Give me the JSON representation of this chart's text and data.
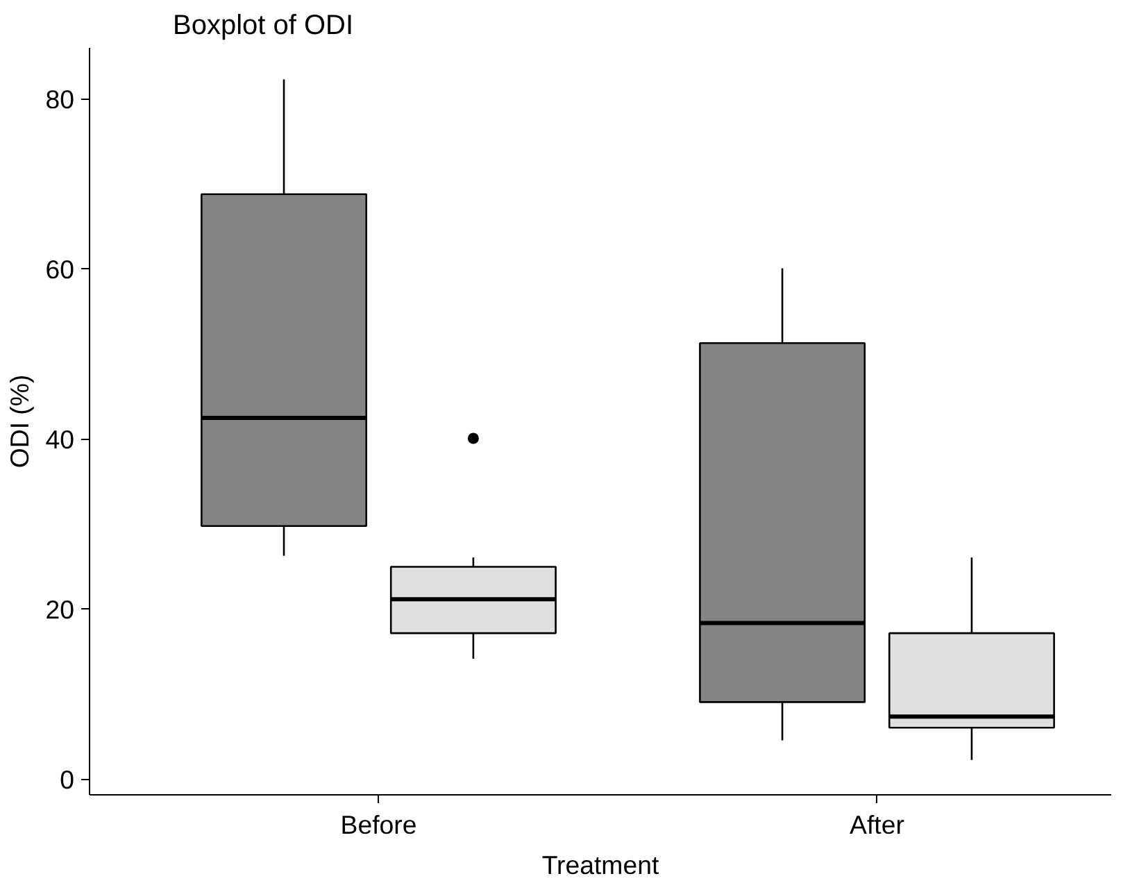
{
  "chart_data": {
    "type": "box",
    "title": "Boxplot of ODI",
    "xlabel": "Treatment",
    "ylabel": "ODI (%)",
    "categories": [
      "Before",
      "After"
    ],
    "ylim": [
      -1.8,
      86
    ],
    "yticks": [
      0,
      20,
      40,
      60,
      80
    ],
    "grid": false,
    "series": [
      {
        "color": "#858585",
        "boxes": [
          {
            "low": 26.3,
            "q1": 29.8,
            "median": 42.5,
            "q3": 68.8,
            "high": 82.3
          },
          {
            "low": 4.6,
            "q1": 9.1,
            "median": 18.4,
            "q3": 51.3,
            "high": 60.1
          }
        ]
      },
      {
        "color": "#e0e0e0",
        "boxes": [
          {
            "low": 14.2,
            "q1": 17.2,
            "median": 21.2,
            "q3": 25.0,
            "high": 26.1,
            "outliers": [
              40.1
            ]
          },
          {
            "low": 2.3,
            "q1": 6.1,
            "median": 7.4,
            "q3": 17.2,
            "high": 26.1
          }
        ]
      }
    ]
  }
}
